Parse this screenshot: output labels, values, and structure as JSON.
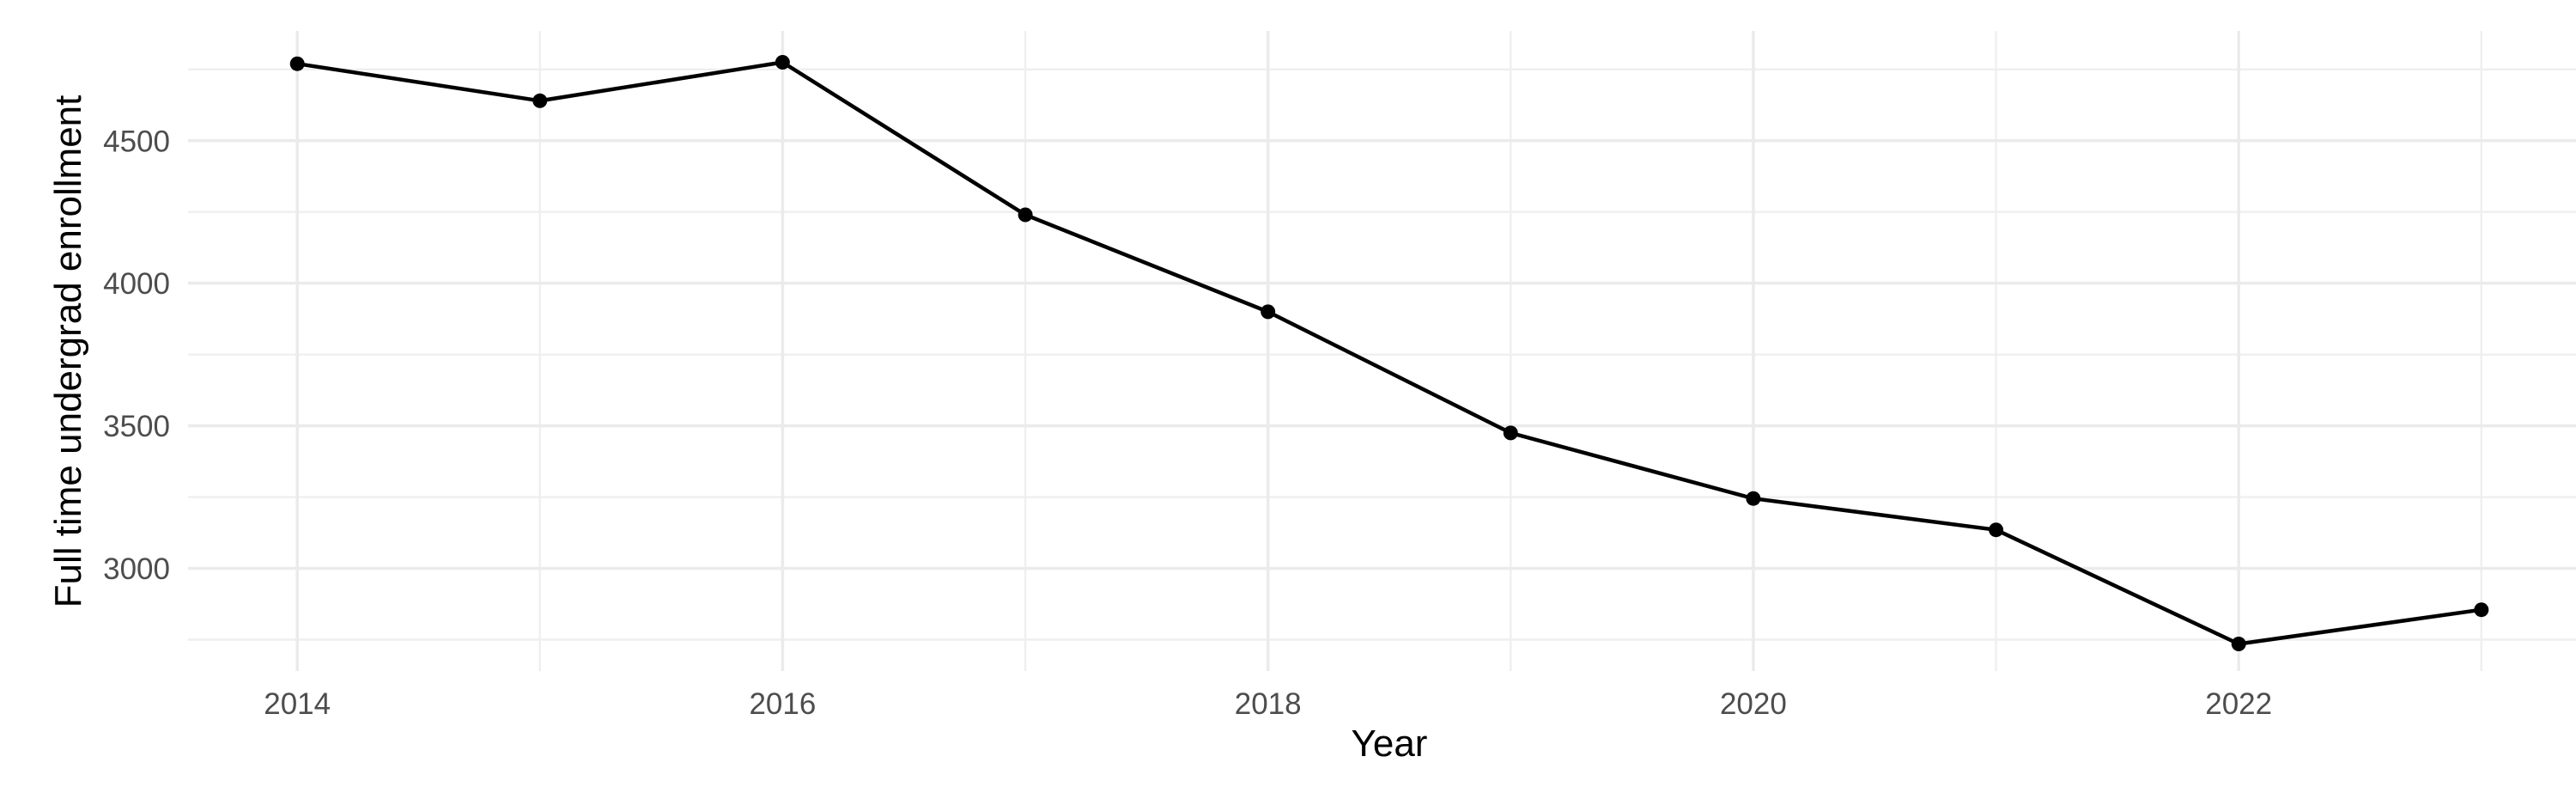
{
  "chart_data": {
    "type": "line",
    "title": "",
    "xlabel": "Year",
    "ylabel": "Full time undergrad enrollment",
    "x": [
      2014,
      2015,
      2016,
      2017,
      2018,
      2019,
      2020,
      2021,
      2022,
      2023
    ],
    "values": [
      4770,
      4640,
      4775,
      4240,
      3900,
      3475,
      3245,
      3135,
      2735,
      2855
    ],
    "series_name": "Full time undergrad enrollment",
    "x_ticks": [
      2014,
      2016,
      2018,
      2020,
      2022
    ],
    "y_ticks": [
      3000,
      3500,
      4000,
      4500
    ],
    "x_minor_ticks": [
      2015,
      2017,
      2019,
      2021,
      2023
    ],
    "y_minor_ticks": [
      2750,
      3250,
      3750,
      4250,
      4750
    ],
    "xlim": [
      2013.55,
      2023.45
    ],
    "ylim": [
      2640,
      4885
    ],
    "grid": "on",
    "legend": "none",
    "marker": "filled-circle",
    "colors": {
      "line": "#000000",
      "point": "#000000",
      "grid_major": "#EBEBEB",
      "grid_minor": "#EFEFEF",
      "tick_label": "#4D4D4D",
      "axis_title": "#000000",
      "background": "#FFFFFF"
    }
  }
}
